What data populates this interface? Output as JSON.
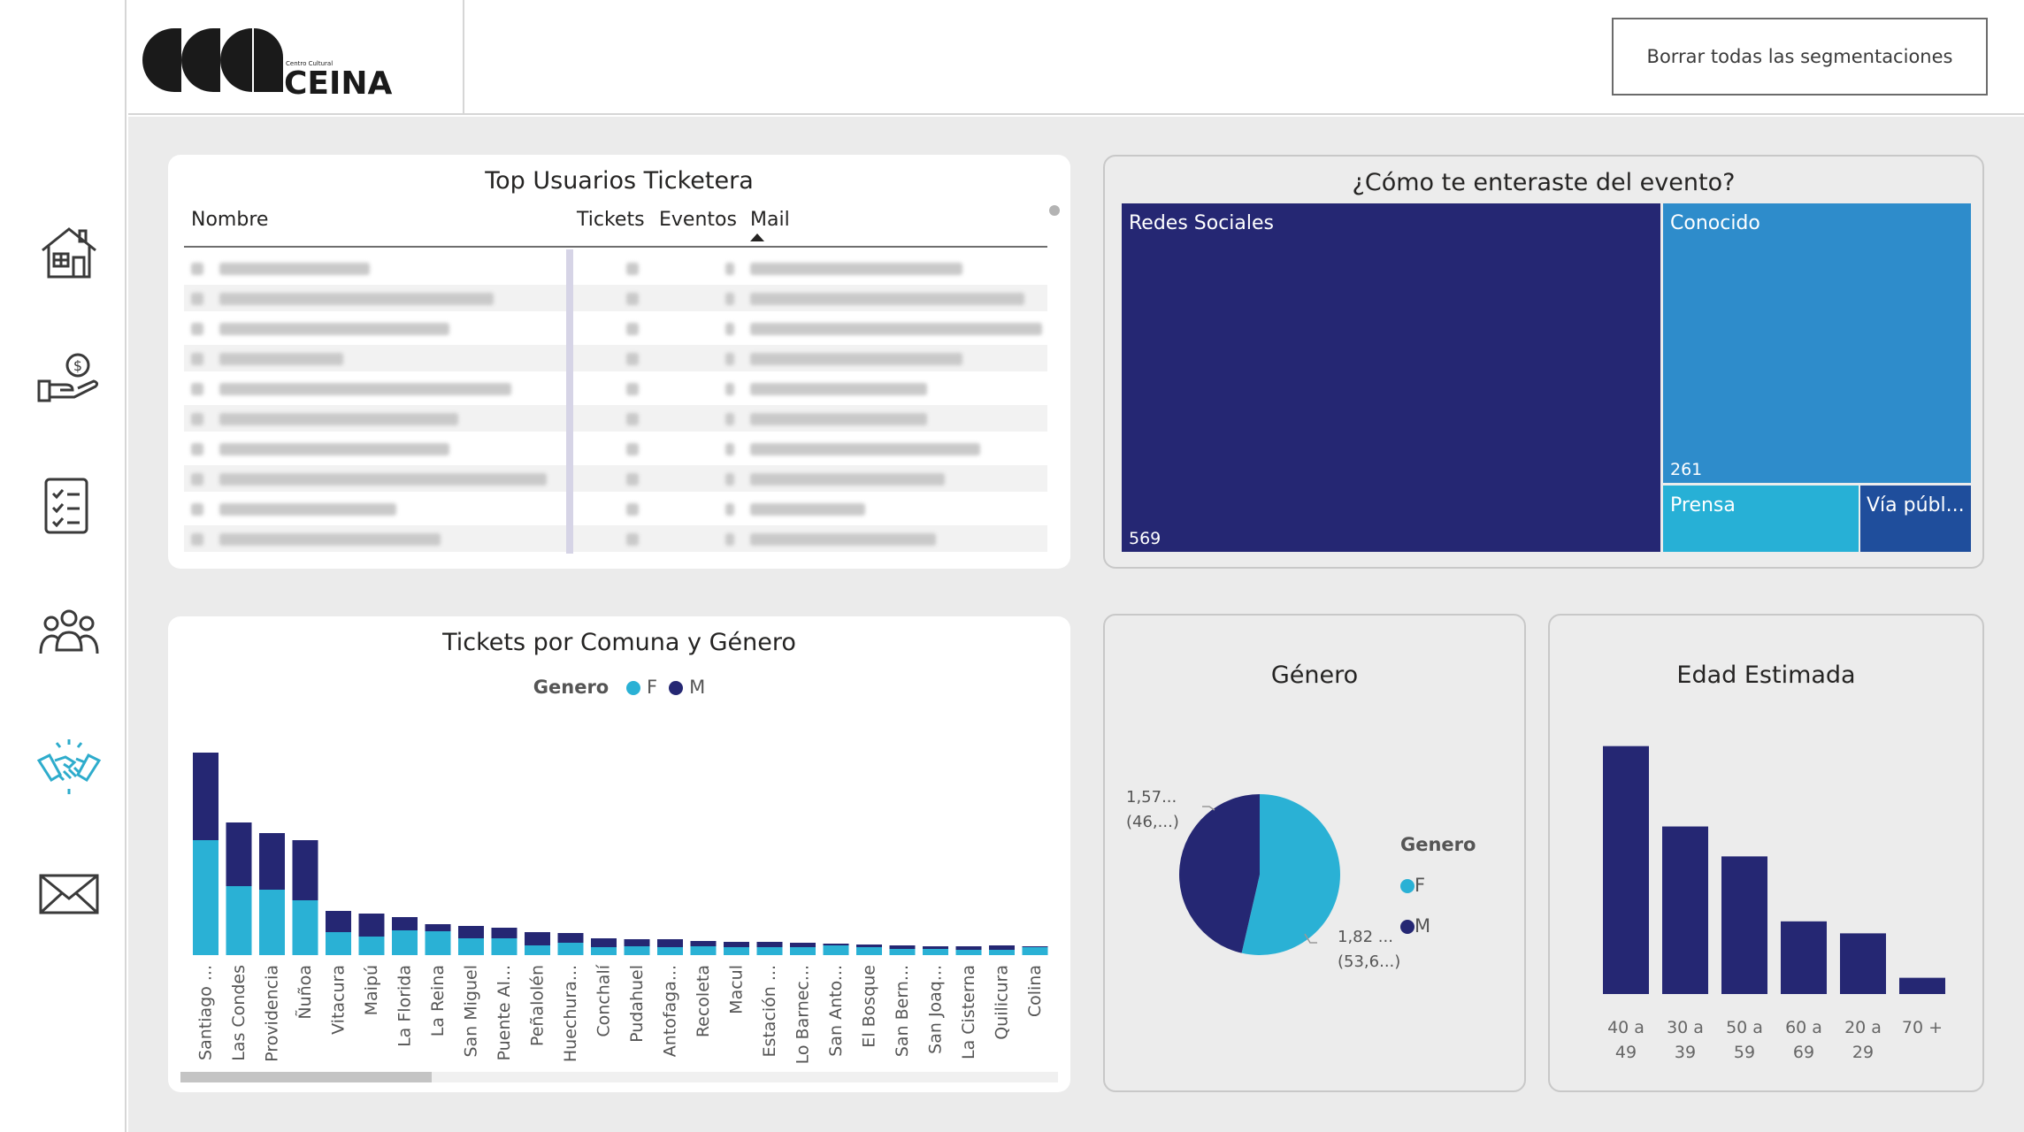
{
  "header": {
    "logo_small": "Centro Cultural",
    "logo_text": "CEINA",
    "clear_button": "Borrar todas las segmentaciones"
  },
  "nav": {
    "items": [
      {
        "name": "home-icon"
      },
      {
        "name": "money-hand-icon"
      },
      {
        "name": "checklist-icon"
      },
      {
        "name": "people-icon"
      },
      {
        "name": "handshake-icon",
        "active": true
      },
      {
        "name": "mail-icon"
      }
    ],
    "active_color": "#2eaccc"
  },
  "table": {
    "title": "Top Usuarios Ticketera",
    "columns": [
      "Nombre",
      "Tickets",
      "Eventos",
      "Mail"
    ],
    "sorted_column": "Mail"
  },
  "treemap": {
    "title": "¿Cómo te enteraste del evento?",
    "items": [
      {
        "label": "Redes Sociales",
        "value": "569",
        "color": "#252773"
      },
      {
        "label": "Conocido",
        "value": "261",
        "color": "#2e8ccb"
      },
      {
        "label": "Prensa",
        "value": "",
        "color": "#27b0d6"
      },
      {
        "label": "Vía públ...",
        "value": "",
        "color": "#1f4e9c"
      }
    ]
  },
  "comuna": {
    "title": "Tickets por Comuna y Género",
    "legend_title": "Genero",
    "legend": [
      {
        "label": "F",
        "color": "#2ab1d5"
      },
      {
        "label": "M",
        "color": "#252773"
      }
    ]
  },
  "genero": {
    "title": "Género",
    "legend_title": "Genero",
    "legend": [
      {
        "label": "F",
        "color": "#2ab1d5"
      },
      {
        "label": "M",
        "color": "#252773"
      }
    ],
    "label_m_1": "1,57...",
    "label_m_2": "(46,...)",
    "label_f_1": "1,82 ...",
    "label_f_2": "(53,6...)"
  },
  "edad": {
    "title": "Edad Estimada"
  },
  "chart_data": [
    {
      "type": "bar",
      "title": "Tickets por Comuna y Género",
      "stacked": true,
      "categories": [
        "Santiago ...",
        "Las Condes",
        "Providencia",
        "Ñuñoa",
        "Vitacura",
        "Maipú",
        "La Florida",
        "La Reina",
        "San Miguel",
        "Puente Al...",
        "Peñalolén",
        "Huechura...",
        "Conchalí",
        "Pudahuel",
        "Antofaga...",
        "Recoleta",
        "Macul",
        "Estación ...",
        "Lo Barnec...",
        "San Anto...",
        "El Bosque",
        "San Bern...",
        "San Joaq...",
        "La Cisterna",
        "Quilicura",
        "Colina"
      ],
      "series": [
        {
          "name": "F",
          "color": "#2ab1d5",
          "values": [
            130,
            78,
            74,
            62,
            26,
            21,
            28,
            27,
            19,
            19,
            11,
            14,
            9,
            10,
            9,
            10,
            9,
            9,
            9,
            11,
            9,
            7,
            7,
            6,
            6,
            9
          ]
        },
        {
          "name": "M",
          "color": "#252773",
          "values": [
            99,
            72,
            64,
            68,
            24,
            26,
            15,
            8,
            14,
            12,
            15,
            11,
            10,
            8,
            9,
            6,
            6,
            6,
            5,
            2,
            3,
            4,
            3,
            4,
            5,
            1
          ]
        }
      ],
      "ylim": [
        0,
        240
      ]
    },
    {
      "type": "pie",
      "title": "Género",
      "slices": [
        {
          "label": "F",
          "value": 53.6,
          "color": "#2ab1d5"
        },
        {
          "label": "M",
          "value": 46.4,
          "color": "#252773"
        }
      ]
    },
    {
      "type": "bar",
      "title": "Edad Estimada",
      "categories": [
        "40 a 49",
        "30 a 39",
        "50 a 59",
        "60 a 69",
        "20 a 29",
        "70 +"
      ],
      "cat_lines": [
        [
          "40 a",
          "49"
        ],
        [
          "30 a",
          "39"
        ],
        [
          "50 a",
          "59"
        ],
        [
          "60 a",
          "69"
        ],
        [
          "20 a",
          "29"
        ],
        [
          "70 +",
          ""
        ]
      ],
      "values": [
        290,
        196,
        161,
        85,
        71,
        19
      ],
      "color": "#252773",
      "ylim": [
        0,
        300
      ]
    }
  ]
}
